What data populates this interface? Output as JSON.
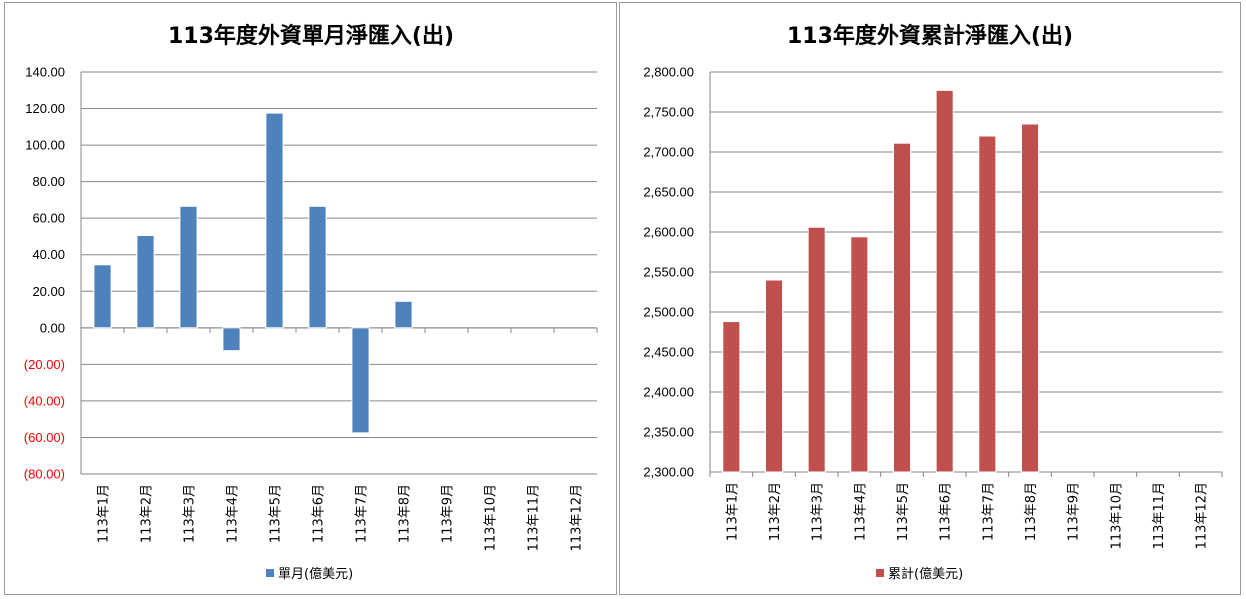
{
  "chart_data": [
    {
      "type": "bar",
      "title": "113年度外資單月淨匯入(出)",
      "categories": [
        "113年1月",
        "113年2月",
        "113年3月",
        "113年4月",
        "113年5月",
        "113年6月",
        "113年7月",
        "113年8月",
        "113年9月",
        "113年10月",
        "113年11月",
        "113年12月"
      ],
      "series": [
        {
          "name": "單月(億美元)",
          "values": [
            34.5,
            50.5,
            66.5,
            -12.5,
            117.5,
            66.5,
            -57.5,
            14.5,
            null,
            null,
            null,
            null
          ]
        }
      ],
      "ylim": [
        -80,
        140
      ],
      "ystep": 20,
      "ytick_labels": [
        "140.00",
        "120.00",
        "100.00",
        "80.00",
        "60.00",
        "40.00",
        "20.00",
        "0.00",
        "(20.00)",
        "(40.00)",
        "(60.00)",
        "(80.00)"
      ],
      "bar_color": "#4f81bd",
      "negative_label_color": "#ff0000",
      "grid": true,
      "legend_position": "bottom",
      "xlabel": "",
      "ylabel": ""
    },
    {
      "type": "bar",
      "title": "113年度外資累計淨匯入(出)",
      "categories": [
        "113年1月",
        "113年2月",
        "113年3月",
        "113年4月",
        "113年5月",
        "113年6月",
        "113年7月",
        "113年8月",
        "113年9月",
        "113年10月",
        "113年11月",
        "113年12月"
      ],
      "series": [
        {
          "name": "累計(億美元)",
          "values": [
            2488,
            2540,
            2606,
            2594,
            2711,
            2777,
            2720,
            2735,
            null,
            null,
            null,
            null
          ]
        }
      ],
      "ylim": [
        2300,
        2800
      ],
      "ystep": 50,
      "ytick_labels": [
        "2,800.00",
        "2,750.00",
        "2,700.00",
        "2,650.00",
        "2,600.00",
        "2,550.00",
        "2,500.00",
        "2,450.00",
        "2,400.00",
        "2,350.00",
        "2,300.00"
      ],
      "bar_color": "#c0504d",
      "negative_label_color": "#ff0000",
      "grid": true,
      "legend_position": "bottom",
      "xlabel": "",
      "ylabel": ""
    }
  ]
}
